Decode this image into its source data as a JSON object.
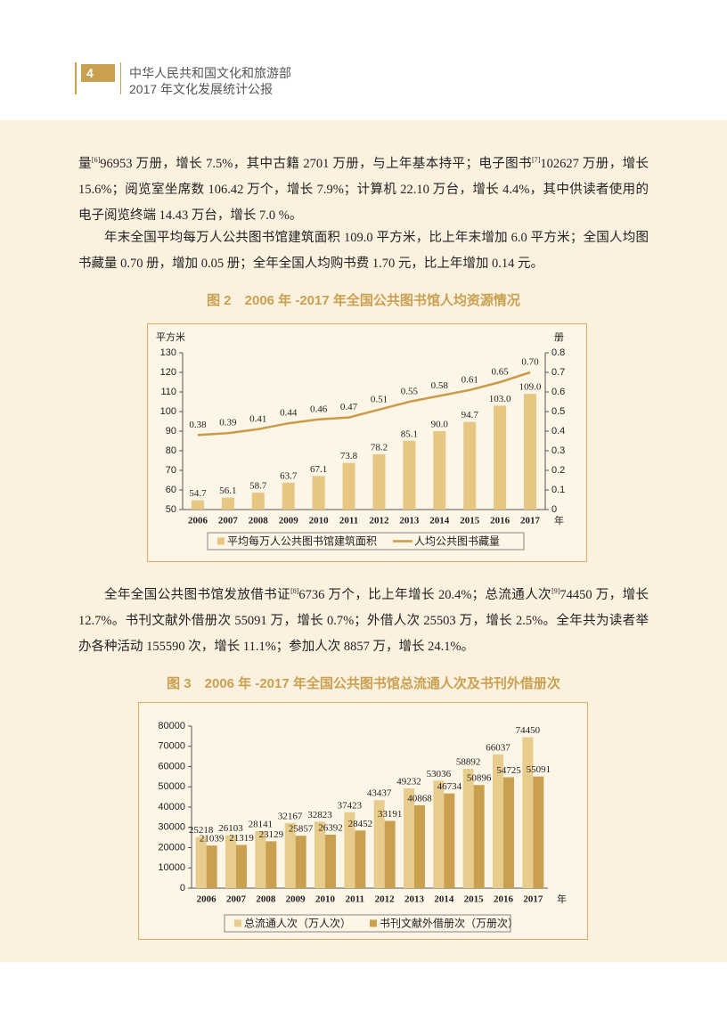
{
  "header": {
    "page_number": 4,
    "org": "中华人民共和国文化和旅游部",
    "report": "2017 年文化发展统计公报"
  },
  "paragraphs": [
    [
      "量",
      "[6]",
      "96953 万册，增长 7.5%，其中古籍 2701 万册，与上年基本持平；电子图书",
      "[7]",
      "102627 万册，增长 15.6%；阅览室坐席数 106.42 万个，增长 7.9%；计算机 22.10 万台，增长 4.4%，其中供读者使用的电子阅览终端 14.43 万台，增长 7.0 %。"
    ],
    [
      "年末全国平均每万人公共图书馆建筑面积 109.0 平方米，比上年末增加 6.0 平方米；全国人均图书藏量 0.70 册，增加 0.05 册；全年全国人均购书费 1.70 元，比上年增加 0.14 元。"
    ],
    [
      "全年全国公共图书馆发放借书证",
      "[8]",
      "6736 万个，比上年增长 20.4%；总流通人次",
      "[9]",
      "74450 万，增长 12.7%。书刊文献外借册次 55091 万，增长 0.7%；外借人次 25503 万，增长 2.5%。全年共为读者举办各种活动 155590 次，增长 11.1%；参加人次 8857 万，增长 24.1%。"
    ]
  ],
  "chart_data": [
    {
      "type": "combo",
      "title": "图 2　2006 年 -2017 年全国公共图书馆人均资源情况",
      "y_label": "平方米",
      "y2_label": "册",
      "x_unit": "年",
      "categories": [
        "2006",
        "2007",
        "2008",
        "2009",
        "2010",
        "2011",
        "2012",
        "2013",
        "2014",
        "2015",
        "2016",
        "2017"
      ],
      "series": [
        {
          "name": "平均每万人公共图书馆建筑面积",
          "type": "bar",
          "color": "#e6c681",
          "values": [
            54.7,
            56.1,
            58.7,
            63.7,
            67.1,
            73.8,
            78.2,
            85.1,
            90.0,
            94.7,
            103.0,
            109.0
          ],
          "value_labels": [
            "54.7",
            "56.1",
            "58.7",
            "63.7",
            "67.1",
            "73.8",
            "78.2",
            "85.1",
            "90.0",
            "94.7",
            "103.0",
            "109.0"
          ]
        },
        {
          "name": "人均公共图书藏量",
          "type": "line",
          "axis": "y2",
          "color": "#c99b4b",
          "values": [
            0.38,
            0.39,
            0.41,
            0.44,
            0.46,
            0.47,
            0.51,
            0.55,
            0.58,
            0.61,
            0.65,
            0.7
          ],
          "value_labels": [
            "0.38",
            "0.39",
            "0.41",
            "0.44",
            "0.46",
            "0.47",
            "0.51",
            "0.55",
            "0.58",
            "0.61",
            "0.65",
            "0.70"
          ]
        }
      ],
      "ylim": [
        50,
        130
      ],
      "yticks": [
        50,
        60,
        70,
        80,
        90,
        100,
        110,
        120,
        130
      ],
      "y2lim": [
        0,
        0.8
      ],
      "y2ticks": [
        0,
        0.1,
        0.2,
        0.3,
        0.4,
        0.5,
        0.6,
        0.7,
        0.8
      ]
    },
    {
      "type": "bar",
      "title": "图 3　2006 年 -2017 年全国公共图书馆总流通人次及书刊外借册次",
      "x_unit": "年",
      "categories": [
        "2006",
        "2007",
        "2008",
        "2009",
        "2010",
        "2011",
        "2012",
        "2013",
        "2014",
        "2015",
        "2016",
        "2017"
      ],
      "series": [
        {
          "name": "总流通人次（万人次）",
          "color": "#e8cc8c",
          "values": [
            25218,
            26103,
            28141,
            32167,
            32823,
            37423,
            43437,
            49232,
            53036,
            58892,
            66037,
            74450
          ]
        },
        {
          "name": "书刊文献外借册次（万册次）",
          "color": "#c9a050",
          "values": [
            21039,
            21319,
            23129,
            25857,
            26392,
            28452,
            33191,
            40868,
            46734,
            50896,
            54725,
            55091
          ]
        }
      ],
      "ylim": [
        0,
        80000
      ],
      "yticks": [
        0,
        10000,
        20000,
        30000,
        40000,
        50000,
        60000,
        70000,
        80000
      ]
    }
  ]
}
